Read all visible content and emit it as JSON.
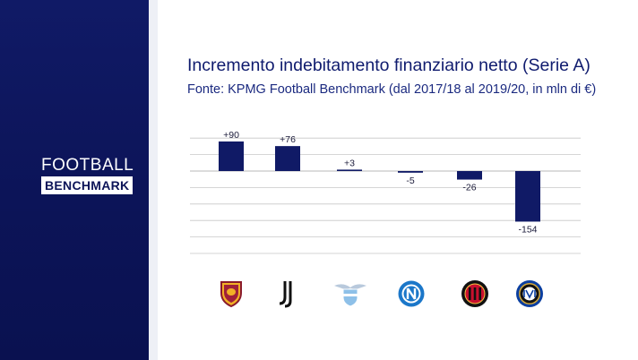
{
  "brand": {
    "line1": "FOOTBALL",
    "line2": "BENCHMARK"
  },
  "colors": {
    "sidebar": "#0c1458",
    "bar": "#101a66",
    "title": "#0f1b6e",
    "grid": "#c8c8c8"
  },
  "chart_data": {
    "type": "bar",
    "title": "Incremento indebitamento finanziario netto (Serie A)",
    "subtitle": "Fonte: KPMG Football Benchmark (dal 2017/18 al 2019/20, in mln di €)",
    "categories": [
      "Roma",
      "Juventus",
      "Lazio",
      "Napoli",
      "Milan",
      "Inter"
    ],
    "values": [
      90,
      76,
      3,
      -5,
      -26,
      -154
    ],
    "value_labels": [
      "+90",
      "+76",
      "+3",
      "-5",
      "-26",
      "-154"
    ],
    "xlabel": "",
    "ylabel": "",
    "ylim": [
      -160,
      100
    ],
    "grid": true,
    "legend": "none",
    "category_icons": [
      "roma-crest-icon",
      "juventus-crest-icon",
      "lazio-crest-icon",
      "napoli-crest-icon",
      "milan-crest-icon",
      "inter-crest-icon"
    ]
  }
}
